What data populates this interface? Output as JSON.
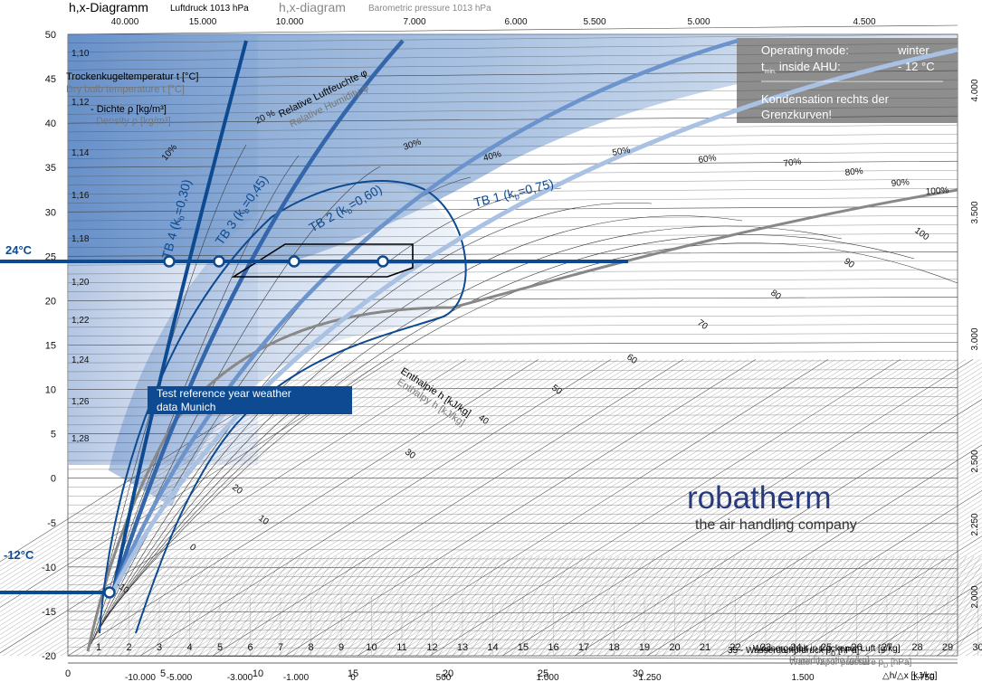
{
  "header": {
    "title_de": "h,x-Diagramm",
    "subtitle_de": "Luftdruck 1013 hPa",
    "title_en": "h,x-diagram",
    "subtitle_en": "Barometric pressure 1013 hPa"
  },
  "info_box": {
    "mode_label": "Operating mode:",
    "mode_value": "winter",
    "tmin_prefix": "t",
    "tmin_sub": "min.",
    "tmin_label": "inside AHU:",
    "tmin_value": "- 12 °C",
    "warning_line1": "Kondensation rechts der",
    "warning_line2": "Grenzkurven!"
  },
  "markers": {
    "temp_high": "24°C",
    "temp_low": "-12°C"
  },
  "weather_box": {
    "line1": "Test reference year weather",
    "line2": "data Munich"
  },
  "brand": {
    "name": "robatherm",
    "tagline": "the air handling company"
  },
  "axis_labels": {
    "temp_de": "Trockenkugeltemperatur t [°C]",
    "temp_en": "Dry bulb temperature t [°C]",
    "density_de": "- Dichte ρ [kg/m³]",
    "density_en": "Density ρ [kg/m³]",
    "rh_de": "Relative Luftfeuchte φ",
    "rh_en": "Relative Humidity φ",
    "enthalpy_de": "Enthalpie h [kJ/kg]",
    "enthalpy_en": "Enthalpy h [kJ/kg]",
    "x_de": "Wassergehalt in trockener Luft [g/kg]",
    "x_en": "Humidity ratio [g/kg]",
    "p_de": "Wasserdampfdruck p",
    "p_de_sub": "D",
    "p_de_unit": "[hPa]",
    "p_en": "Water vapor pressure p",
    "p_en_sub": "D",
    "p_en_unit": "[hPa]",
    "p_prefix": "35 -",
    "ratio": "△h/△x [kJ/kg]"
  },
  "colors": {
    "dark_blue": "#0d4a91",
    "mid_blue": "#4a7cbd",
    "light_blue": "#a9c1e3",
    "info_grey": "#8e8e8e",
    "sat_grey": "#888888"
  },
  "chart_data": {
    "type": "line",
    "x": [
      0,
      1,
      2,
      3,
      4,
      5,
      6,
      7,
      8,
      9,
      10,
      11,
      12,
      13,
      14,
      15,
      16,
      17,
      18,
      19,
      20,
      21,
      22,
      23,
      24,
      25,
      26,
      27,
      28,
      29,
      30
    ],
    "y_ticks": [
      -20,
      -15,
      -10,
      -5,
      0,
      5,
      10,
      15,
      20,
      25,
      30,
      35,
      40,
      45,
      50
    ],
    "density_ticks": [
      "1,10",
      "1,12",
      "1,14",
      "1,16",
      "1,18",
      "1,20",
      "1,22",
      "1,24",
      "1,26",
      "1,28"
    ],
    "rh_labels": [
      "10%",
      "20 %",
      "30%",
      "40%",
      "50%",
      "60%",
      "70%",
      "80%",
      "90%",
      "100%"
    ],
    "enthalpy_labels": [
      "-10",
      "0",
      "10",
      "20",
      "30",
      "40",
      "50",
      "60",
      "70",
      "80",
      "90",
      "100"
    ],
    "pressure_ticks": [
      "0",
      "5",
      "10",
      "15",
      "20",
      "25",
      "30"
    ],
    "ratio_bottom": [
      "-10.000",
      "-5.000",
      "-3.000",
      "-1.000",
      "0",
      "500",
      "1.000",
      "1.250",
      "1.500",
      "1.750"
    ],
    "ratio_top": [
      "40.000",
      "15.000",
      "10.000",
      "7.000",
      "6.000",
      "5.500",
      "5.000",
      "4.500"
    ],
    "ratio_right": [
      "4.000",
      "3.500",
      "3.000",
      "2.500",
      "2.250",
      "2.000"
    ],
    "series": [
      {
        "name": "TB 4 (k",
        "sub": "b",
        "suffix": "=0,30)",
        "color": "#0d4a91"
      },
      {
        "name": "TB 3 (k",
        "sub": "b",
        "suffix": "=0,45)",
        "color": "#3366aa"
      },
      {
        "name": "TB 2 (k",
        "sub": "b",
        "suffix": "=0,60)",
        "color": "#6c94cc"
      },
      {
        "name": "TB 1 (k",
        "sub": "b",
        "suffix": "=0,75)",
        "color": "#a9c1e3"
      }
    ],
    "points": [
      {
        "x": 3.5,
        "y": 24
      },
      {
        "x": 5.1,
        "y": 24
      },
      {
        "x": 7.6,
        "y": 24
      },
      {
        "x": 10.6,
        "y": 24
      },
      {
        "x": 1.4,
        "y": -12
      }
    ]
  }
}
